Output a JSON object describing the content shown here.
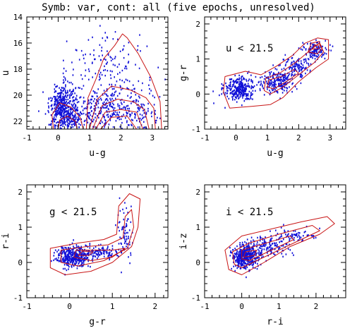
{
  "figure": {
    "title": "Symb: var, cont: all (five epochs, unresolved)"
  },
  "colors": {
    "points": "#1010d8",
    "contours": "#c81414",
    "axes": "#000000"
  },
  "chart_data": [
    {
      "type": "scatter",
      "panel": "top-left",
      "xlabel": "u-g",
      "ylabel": "u",
      "annotation": "",
      "xlim": [
        -1,
        3.5
      ],
      "ylim": [
        22.6,
        14
      ],
      "xticks": [
        -1,
        0,
        1,
        2,
        3
      ],
      "yticks": [
        14,
        16,
        18,
        20,
        22
      ],
      "point_clouds": [
        {
          "cx": 0.15,
          "cy": 20.9,
          "sx": 0.22,
          "sy": 0.9,
          "n": 380
        },
        {
          "cx": 0.35,
          "cy": 21.6,
          "sx": 0.25,
          "sy": 0.5,
          "n": 120
        },
        {
          "cx": 1.3,
          "cy": 21.2,
          "sx": 0.55,
          "sy": 0.8,
          "n": 220
        },
        {
          "cx": 2.4,
          "cy": 21.0,
          "sx": 0.45,
          "sy": 1.1,
          "n": 160
        },
        {
          "cx": 1.6,
          "cy": 17.8,
          "sx": 0.6,
          "sy": 1.4,
          "n": 140
        }
      ],
      "contours": [
        [
          [
            0.9,
            22.6
          ],
          [
            0.95,
            20.2
          ],
          [
            1.2,
            18.8
          ],
          [
            1.45,
            17.2
          ],
          [
            1.8,
            16.2
          ],
          [
            2.05,
            15.3
          ],
          [
            2.2,
            15.6
          ],
          [
            2.55,
            16.8
          ],
          [
            2.95,
            18.6
          ],
          [
            3.25,
            20.5
          ],
          [
            3.3,
            22.6
          ]
        ],
        [
          [
            1.0,
            22.6
          ],
          [
            1.25,
            20.3
          ],
          [
            1.7,
            19.3
          ],
          [
            2.3,
            19.6
          ],
          [
            2.8,
            20.2
          ],
          [
            3.05,
            21.0
          ],
          [
            3.1,
            22.6
          ]
        ],
        [
          [
            1.1,
            22.6
          ],
          [
            1.4,
            20.8
          ],
          [
            1.9,
            20.3
          ],
          [
            2.4,
            20.5
          ],
          [
            2.75,
            21.1
          ],
          [
            2.9,
            22.6
          ]
        ],
        [
          [
            1.2,
            22.6
          ],
          [
            1.5,
            21.3
          ],
          [
            2.0,
            21.1
          ],
          [
            2.5,
            21.3
          ],
          [
            2.7,
            22.6
          ]
        ],
        [
          [
            1.35,
            22.6
          ],
          [
            1.7,
            21.7
          ],
          [
            2.2,
            21.6
          ],
          [
            2.5,
            22.6
          ]
        ],
        [
          [
            -0.15,
            22.6
          ],
          [
            -0.2,
            21.5
          ],
          [
            0.05,
            20.6
          ],
          [
            0.4,
            20.9
          ],
          [
            0.7,
            21.7
          ],
          [
            0.8,
            22.6
          ]
        ],
        [
          [
            0.0,
            22.6
          ],
          [
            0.05,
            21.9
          ],
          [
            0.3,
            21.6
          ],
          [
            0.55,
            22.0
          ],
          [
            0.6,
            22.6
          ]
        ]
      ]
    },
    {
      "type": "scatter",
      "panel": "top-right",
      "xlabel": "u-g",
      "ylabel": "g-r",
      "annotation": "u < 21.5",
      "xlim": [
        -1,
        3.5
      ],
      "ylim": [
        -1,
        2.2
      ],
      "xticks": [
        -1,
        0,
        1,
        2,
        3
      ],
      "yticks": [
        -1,
        0,
        1,
        2
      ],
      "point_clouds": [
        {
          "cx": 0.1,
          "cy": 0.15,
          "sx": 0.25,
          "sy": 0.18,
          "n": 300
        },
        {
          "cx": 1.3,
          "cy": 0.35,
          "sx": 0.25,
          "sy": 0.15,
          "n": 200
        },
        {
          "cx": 1.9,
          "cy": 0.75,
          "sx": 0.25,
          "sy": 0.15,
          "n": 120
        },
        {
          "cx": 2.5,
          "cy": 1.25,
          "sx": 0.2,
          "sy": 0.12,
          "n": 120
        }
      ],
      "contours": [
        [
          [
            -0.4,
            0.05
          ],
          [
            -0.35,
            0.5
          ],
          [
            0.3,
            0.65
          ],
          [
            0.8,
            0.55
          ],
          [
            1.3,
            0.8
          ],
          [
            1.8,
            1.1
          ],
          [
            2.2,
            1.45
          ],
          [
            2.6,
            1.6
          ],
          [
            2.95,
            1.55
          ],
          [
            2.95,
            1.0
          ],
          [
            2.55,
            0.75
          ],
          [
            2.0,
            0.35
          ],
          [
            1.5,
            -0.1
          ],
          [
            1.1,
            -0.3
          ],
          [
            0.5,
            -0.35
          ],
          [
            -0.2,
            -0.4
          ]
        ],
        [
          [
            0.9,
            0.1
          ],
          [
            0.95,
            0.45
          ],
          [
            1.4,
            0.6
          ],
          [
            1.9,
            0.9
          ],
          [
            2.3,
            1.2
          ],
          [
            2.65,
            1.45
          ],
          [
            2.8,
            1.2
          ],
          [
            2.5,
            0.9
          ],
          [
            2.0,
            0.55
          ],
          [
            1.5,
            0.2
          ],
          [
            1.1,
            0.0
          ]
        ],
        [
          [
            1.0,
            0.2
          ],
          [
            1.05,
            0.4
          ],
          [
            1.45,
            0.5
          ],
          [
            1.85,
            0.7
          ],
          [
            2.0,
            0.6
          ],
          [
            1.6,
            0.35
          ],
          [
            1.2,
            0.15
          ]
        ],
        [
          [
            2.3,
            1.2
          ],
          [
            2.4,
            1.45
          ],
          [
            2.65,
            1.5
          ],
          [
            2.75,
            1.3
          ],
          [
            2.6,
            1.15
          ]
        ],
        [
          [
            2.45,
            1.28
          ],
          [
            2.5,
            1.4
          ],
          [
            2.62,
            1.4
          ],
          [
            2.65,
            1.3
          ]
        ]
      ]
    },
    {
      "type": "scatter",
      "panel": "bottom-left",
      "xlabel": "g-r",
      "ylabel": "r-i",
      "annotation": "g < 21.5",
      "xlim": [
        -1,
        2.3
      ],
      "ylim": [
        -1,
        2.2
      ],
      "xticks": [
        -1,
        0,
        1,
        2
      ],
      "yticks": [
        -1,
        0,
        1,
        2
      ],
      "point_clouds": [
        {
          "cx": 0.1,
          "cy": 0.15,
          "sx": 0.2,
          "sy": 0.15,
          "n": 380
        },
        {
          "cx": 0.7,
          "cy": 0.3,
          "sx": 0.25,
          "sy": 0.1,
          "n": 120
        },
        {
          "cx": 1.3,
          "cy": 0.8,
          "sx": 0.1,
          "sy": 0.4,
          "n": 70
        }
      ],
      "contours": [
        [
          [
            -0.45,
            -0.15
          ],
          [
            -0.45,
            0.4
          ],
          [
            0.2,
            0.55
          ],
          [
            0.8,
            0.65
          ],
          [
            1.1,
            0.8
          ],
          [
            1.15,
            1.6
          ],
          [
            1.4,
            1.95
          ],
          [
            1.65,
            1.8
          ],
          [
            1.6,
            1.0
          ],
          [
            1.45,
            0.45
          ],
          [
            1.0,
            0.0
          ],
          [
            0.5,
            -0.25
          ],
          [
            -0.1,
            -0.35
          ]
        ],
        [
          [
            -0.2,
            0.0
          ],
          [
            -0.2,
            0.35
          ],
          [
            0.4,
            0.45
          ],
          [
            0.9,
            0.5
          ],
          [
            1.25,
            0.7
          ],
          [
            1.3,
            1.3
          ],
          [
            1.45,
            1.5
          ],
          [
            1.5,
            1.0
          ],
          [
            1.35,
            0.4
          ],
          [
            0.8,
            0.05
          ],
          [
            0.2,
            -0.1
          ]
        ],
        [
          [
            0.1,
            0.15
          ],
          [
            0.15,
            0.35
          ],
          [
            0.6,
            0.35
          ],
          [
            1.0,
            0.35
          ],
          [
            1.3,
            0.4
          ],
          [
            1.0,
            0.15
          ],
          [
            0.5,
            0.05
          ]
        ],
        [
          [
            0.2,
            0.2
          ],
          [
            0.3,
            0.32
          ],
          [
            0.55,
            0.3
          ],
          [
            0.45,
            0.2
          ]
        ]
      ]
    },
    {
      "type": "scatter",
      "panel": "bottom-right",
      "xlabel": "r-i",
      "ylabel": "i-z",
      "annotation": "i < 21.5",
      "xlim": [
        -1,
        2.8
      ],
      "ylim": [
        -1,
        2.2
      ],
      "xticks": [
        -1,
        0,
        1,
        2
      ],
      "yticks": [
        -1,
        0,
        1,
        2
      ],
      "point_clouds": [
        {
          "cx": 0.1,
          "cy": 0.15,
          "sx": 0.17,
          "sy": 0.17,
          "n": 420
        },
        {
          "cx": 0.7,
          "cy": 0.45,
          "sx": 0.3,
          "sy": 0.15,
          "n": 140
        },
        {
          "cx": 1.4,
          "cy": 0.75,
          "sx": 0.3,
          "sy": 0.1,
          "n": 60
        }
      ],
      "contours": [
        [
          [
            -0.35,
            -0.2
          ],
          [
            -0.45,
            0.35
          ],
          [
            0.0,
            0.75
          ],
          [
            0.8,
            0.95
          ],
          [
            1.6,
            1.15
          ],
          [
            2.3,
            1.3
          ],
          [
            2.5,
            1.1
          ],
          [
            2.1,
            0.8
          ],
          [
            1.3,
            0.45
          ],
          [
            0.6,
            0.0
          ],
          [
            0.0,
            -0.35
          ]
        ],
        [
          [
            -0.2,
            -0.05
          ],
          [
            -0.25,
            0.3
          ],
          [
            0.2,
            0.55
          ],
          [
            1.0,
            0.8
          ],
          [
            1.9,
            1.05
          ],
          [
            2.1,
            0.9
          ],
          [
            1.4,
            0.55
          ],
          [
            0.6,
            0.15
          ],
          [
            0.0,
            -0.15
          ]
        ],
        [
          [
            0.0,
            0.1
          ],
          [
            0.0,
            0.35
          ],
          [
            0.5,
            0.5
          ],
          [
            1.3,
            0.75
          ],
          [
            1.4,
            0.65
          ],
          [
            0.7,
            0.3
          ],
          [
            0.2,
            0.05
          ]
        ],
        [
          [
            0.05,
            0.15
          ],
          [
            0.1,
            0.3
          ],
          [
            0.4,
            0.35
          ],
          [
            0.35,
            0.2
          ]
        ]
      ]
    }
  ]
}
